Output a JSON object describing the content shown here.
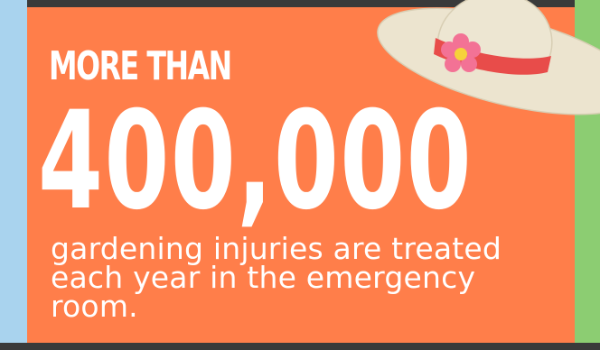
{
  "infographic": {
    "lead": "MORE THAN",
    "figure": "400,000",
    "description_lines": [
      "gardening injuries are treated",
      "each year in the emergency",
      "room."
    ]
  },
  "hat": {
    "icon": "sun-hat-icon",
    "colors": {
      "straw": "#ece4cf",
      "band": "#e84c4a",
      "flower_petals": "#f37295",
      "flower_center": "#f6d23a"
    }
  },
  "colors": {
    "card": "#ff7e4a",
    "text": "#ffffff",
    "left_strip": "#a9d3ee",
    "right_strip": "#8ccd72",
    "frame": "#3a3a3a"
  }
}
